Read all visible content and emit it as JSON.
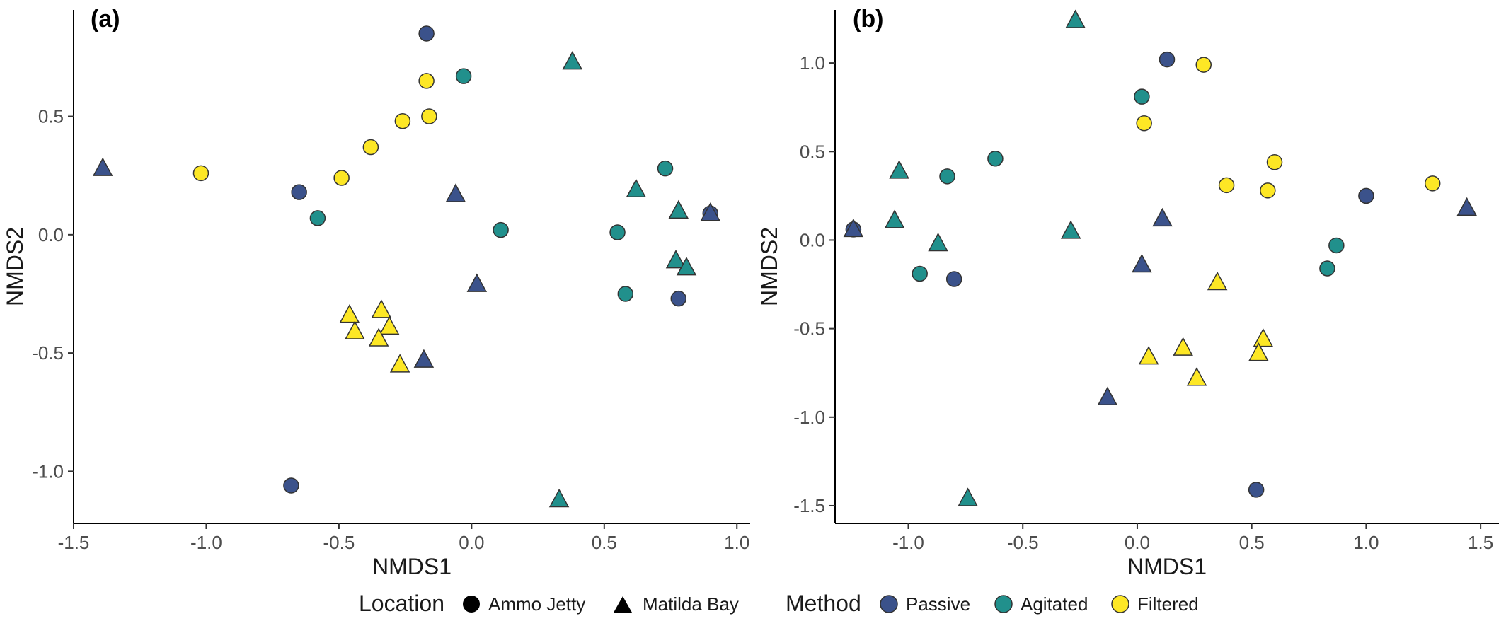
{
  "chart_data": [
    {
      "type": "scatter",
      "panel_label": "(a)",
      "xlabel": "NMDS1",
      "ylabel": "NMDS2",
      "xlim": [
        -1.5,
        1.05
      ],
      "ylim": [
        -1.22,
        0.95
      ],
      "xticks": [
        -1.5,
        -1.0,
        -0.5,
        0.0,
        0.5,
        1.0
      ],
      "xtick_labels": [
        "-1.5",
        "-1.0",
        "-0.5",
        "0.0",
        "0.5",
        "1.0"
      ],
      "yticks": [
        -1.0,
        -0.5,
        0.0,
        0.5
      ],
      "ytick_labels": [
        "-1.0",
        "-0.5",
        "0.0",
        "0.5"
      ],
      "grid": false,
      "points": [
        {
          "x": -0.17,
          "y": 0.85,
          "method": "Passive",
          "location": "Ammo Jetty"
        },
        {
          "x": -0.65,
          "y": 0.18,
          "method": "Passive",
          "location": "Ammo Jetty"
        },
        {
          "x": 0.78,
          "y": -0.27,
          "method": "Passive",
          "location": "Ammo Jetty"
        },
        {
          "x": -0.68,
          "y": -1.06,
          "method": "Passive",
          "location": "Ammo Jetty"
        },
        {
          "x": 0.9,
          "y": 0.09,
          "method": "Passive",
          "location": "Ammo Jetty"
        },
        {
          "x": -1.39,
          "y": 0.28,
          "method": "Passive",
          "location": "Matilda Bay"
        },
        {
          "x": -0.06,
          "y": 0.17,
          "method": "Passive",
          "location": "Matilda Bay"
        },
        {
          "x": 0.02,
          "y": -0.21,
          "method": "Passive",
          "location": "Matilda Bay"
        },
        {
          "x": -0.18,
          "y": -0.53,
          "method": "Passive",
          "location": "Matilda Bay"
        },
        {
          "x": 0.9,
          "y": 0.09,
          "method": "Passive",
          "location": "Matilda Bay"
        },
        {
          "x": -0.03,
          "y": 0.67,
          "method": "Agitated",
          "location": "Ammo Jetty"
        },
        {
          "x": -0.58,
          "y": 0.07,
          "method": "Agitated",
          "location": "Ammo Jetty"
        },
        {
          "x": 0.11,
          "y": 0.02,
          "method": "Agitated",
          "location": "Ammo Jetty"
        },
        {
          "x": 0.73,
          "y": 0.28,
          "method": "Agitated",
          "location": "Ammo Jetty"
        },
        {
          "x": 0.55,
          "y": 0.01,
          "method": "Agitated",
          "location": "Ammo Jetty"
        },
        {
          "x": 0.58,
          "y": -0.25,
          "method": "Agitated",
          "location": "Ammo Jetty"
        },
        {
          "x": 0.38,
          "y": 0.73,
          "method": "Agitated",
          "location": "Matilda Bay"
        },
        {
          "x": 0.62,
          "y": 0.19,
          "method": "Agitated",
          "location": "Matilda Bay"
        },
        {
          "x": 0.78,
          "y": 0.1,
          "method": "Agitated",
          "location": "Matilda Bay"
        },
        {
          "x": 0.77,
          "y": -0.11,
          "method": "Agitated",
          "location": "Matilda Bay"
        },
        {
          "x": 0.81,
          "y": -0.14,
          "method": "Agitated",
          "location": "Matilda Bay"
        },
        {
          "x": 0.33,
          "y": -1.12,
          "method": "Agitated",
          "location": "Matilda Bay"
        },
        {
          "x": -0.17,
          "y": 0.65,
          "method": "Filtered",
          "location": "Ammo Jetty"
        },
        {
          "x": -0.16,
          "y": 0.5,
          "method": "Filtered",
          "location": "Ammo Jetty"
        },
        {
          "x": -0.26,
          "y": 0.48,
          "method": "Filtered",
          "location": "Ammo Jetty"
        },
        {
          "x": -0.38,
          "y": 0.37,
          "method": "Filtered",
          "location": "Ammo Jetty"
        },
        {
          "x": -0.49,
          "y": 0.24,
          "method": "Filtered",
          "location": "Ammo Jetty"
        },
        {
          "x": -1.02,
          "y": 0.26,
          "method": "Filtered",
          "location": "Ammo Jetty"
        },
        {
          "x": -0.46,
          "y": -0.34,
          "method": "Filtered",
          "location": "Matilda Bay"
        },
        {
          "x": -0.34,
          "y": -0.32,
          "method": "Filtered",
          "location": "Matilda Bay"
        },
        {
          "x": -0.44,
          "y": -0.41,
          "method": "Filtered",
          "location": "Matilda Bay"
        },
        {
          "x": -0.31,
          "y": -0.39,
          "method": "Filtered",
          "location": "Matilda Bay"
        },
        {
          "x": -0.35,
          "y": -0.44,
          "method": "Filtered",
          "location": "Matilda Bay"
        },
        {
          "x": -0.27,
          "y": -0.55,
          "method": "Filtered",
          "location": "Matilda Bay"
        }
      ]
    },
    {
      "type": "scatter",
      "panel_label": "(b)",
      "xlabel": "NMDS1",
      "ylabel": "NMDS2",
      "xlim": [
        -1.32,
        1.58
      ],
      "ylim": [
        -1.6,
        1.3
      ],
      "xticks": [
        -1.0,
        -0.5,
        0.0,
        0.5,
        1.0,
        1.5
      ],
      "xtick_labels": [
        "-1.0",
        "-0.5",
        "0.0",
        "0.5",
        "1.0",
        "1.5"
      ],
      "yticks": [
        -1.5,
        -1.0,
        -0.5,
        0.0,
        0.5,
        1.0
      ],
      "ytick_labels": [
        "-1.5",
        "-1.0",
        "-0.5",
        "0.0",
        "0.5",
        "1.0"
      ],
      "grid": false,
      "points": [
        {
          "x": 0.13,
          "y": 1.02,
          "method": "Passive",
          "location": "Ammo Jetty"
        },
        {
          "x": 1.0,
          "y": 0.25,
          "method": "Passive",
          "location": "Ammo Jetty"
        },
        {
          "x": -1.24,
          "y": 0.06,
          "method": "Passive",
          "location": "Ammo Jetty"
        },
        {
          "x": -0.8,
          "y": -0.22,
          "method": "Passive",
          "location": "Ammo Jetty"
        },
        {
          "x": 0.52,
          "y": -1.41,
          "method": "Passive",
          "location": "Ammo Jetty"
        },
        {
          "x": 1.44,
          "y": 0.18,
          "method": "Passive",
          "location": "Matilda Bay"
        },
        {
          "x": 0.11,
          "y": 0.12,
          "method": "Passive",
          "location": "Matilda Bay"
        },
        {
          "x": -1.24,
          "y": 0.06,
          "method": "Passive",
          "location": "Matilda Bay"
        },
        {
          "x": 0.02,
          "y": -0.14,
          "method": "Passive",
          "location": "Matilda Bay"
        },
        {
          "x": -0.13,
          "y": -0.89,
          "method": "Passive",
          "location": "Matilda Bay"
        },
        {
          "x": 0.02,
          "y": 0.81,
          "method": "Agitated",
          "location": "Ammo Jetty"
        },
        {
          "x": -0.62,
          "y": 0.46,
          "method": "Agitated",
          "location": "Ammo Jetty"
        },
        {
          "x": -0.83,
          "y": 0.36,
          "method": "Agitated",
          "location": "Ammo Jetty"
        },
        {
          "x": -0.95,
          "y": -0.19,
          "method": "Agitated",
          "location": "Ammo Jetty"
        },
        {
          "x": 0.87,
          "y": -0.03,
          "method": "Agitated",
          "location": "Ammo Jetty"
        },
        {
          "x": 0.83,
          "y": -0.16,
          "method": "Agitated",
          "location": "Ammo Jetty"
        },
        {
          "x": -0.27,
          "y": 1.24,
          "method": "Agitated",
          "location": "Matilda Bay"
        },
        {
          "x": -1.04,
          "y": 0.39,
          "method": "Agitated",
          "location": "Matilda Bay"
        },
        {
          "x": -1.06,
          "y": 0.11,
          "method": "Agitated",
          "location": "Matilda Bay"
        },
        {
          "x": -0.29,
          "y": 0.05,
          "method": "Agitated",
          "location": "Matilda Bay"
        },
        {
          "x": -0.87,
          "y": -0.02,
          "method": "Agitated",
          "location": "Matilda Bay"
        },
        {
          "x": -0.74,
          "y": -1.46,
          "method": "Agitated",
          "location": "Matilda Bay"
        },
        {
          "x": 0.29,
          "y": 0.99,
          "method": "Filtered",
          "location": "Ammo Jetty"
        },
        {
          "x": 0.03,
          "y": 0.66,
          "method": "Filtered",
          "location": "Ammo Jetty"
        },
        {
          "x": 0.6,
          "y": 0.44,
          "method": "Filtered",
          "location": "Ammo Jetty"
        },
        {
          "x": 0.39,
          "y": 0.31,
          "method": "Filtered",
          "location": "Ammo Jetty"
        },
        {
          "x": 0.57,
          "y": 0.28,
          "method": "Filtered",
          "location": "Ammo Jetty"
        },
        {
          "x": 1.29,
          "y": 0.32,
          "method": "Filtered",
          "location": "Ammo Jetty"
        },
        {
          "x": 0.35,
          "y": -0.24,
          "method": "Filtered",
          "location": "Matilda Bay"
        },
        {
          "x": 0.55,
          "y": -0.56,
          "method": "Filtered",
          "location": "Matilda Bay"
        },
        {
          "x": 0.2,
          "y": -0.61,
          "method": "Filtered",
          "location": "Matilda Bay"
        },
        {
          "x": 0.53,
          "y": -0.64,
          "method": "Filtered",
          "location": "Matilda Bay"
        },
        {
          "x": 0.05,
          "y": -0.66,
          "method": "Filtered",
          "location": "Matilda Bay"
        },
        {
          "x": 0.26,
          "y": -0.78,
          "method": "Filtered",
          "location": "Matilda Bay"
        }
      ]
    }
  ],
  "legend": {
    "placement": "bottom",
    "location": {
      "title": "Location",
      "items": [
        {
          "label": "Ammo Jetty",
          "shape": "circle"
        },
        {
          "label": "Matilda Bay",
          "shape": "triangle"
        }
      ]
    },
    "method": {
      "title": "Method",
      "items": [
        {
          "label": "Passive",
          "color": "#3B528B"
        },
        {
          "label": "Agitated",
          "color": "#21908C"
        },
        {
          "label": "Filtered",
          "color": "#FDE725"
        }
      ]
    }
  },
  "colors": {
    "Passive": "#3B528B",
    "Agitated": "#21908C",
    "Filtered": "#FDE725",
    "marker_outline": "#333333"
  }
}
